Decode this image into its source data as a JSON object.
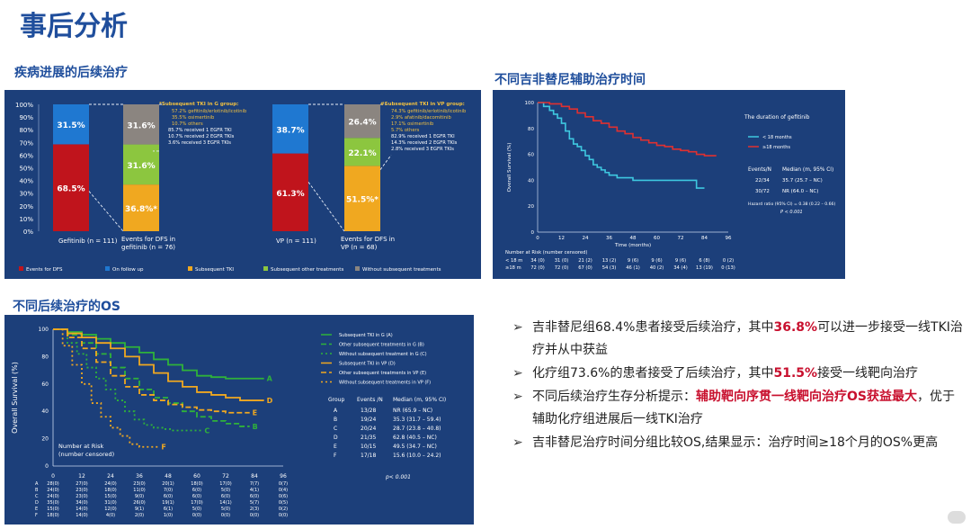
{
  "slide_title": "事后分析",
  "sections": {
    "progression_title": "疾病进展的后续治疗",
    "duration_title": "不同吉非替尼辅助治疗时间",
    "os_title": "不同后续治疗的OS"
  },
  "colors": {
    "panel": "#1c3f7a",
    "title": "#1f4e9c",
    "red": "#c8102e"
  },
  "bullets": [
    {
      "pre": "吉非替尼组68.4%患者接受后续治疗，其中",
      "highlight": "36.8%",
      "post": "可以进一步接受一线TKI治疗并从中获益"
    },
    {
      "pre": "化疗组73.6%的患者接受了后续治疗，其中",
      "highlight": "51.5%",
      "post": "接受一线靶向治疗"
    },
    {
      "pre": "不同后续治疗生存分析提示：",
      "highlight": "辅助靶向序贯一线靶向治疗OS获益最大",
      "post": "，优于辅助化疗组进展后一线TKI治疗"
    },
    {
      "pre": "吉非替尼治疗时间分组比较OS,结果显示：治疗时间≥18个月的OS%更高",
      "highlight": "",
      "post": ""
    }
  ],
  "chart_data": [
    {
      "type": "bar",
      "subtype": "stacked-percent",
      "y_ticks": [
        "100%",
        "90%",
        "80%",
        "70%",
        "60%",
        "50%",
        "40%",
        "30%",
        "20%",
        "10%",
        "0%"
      ],
      "ylim": [
        0,
        100
      ],
      "categories": [
        "Gefitinib (n = 111)",
        "Events for DFS in gefitinib (n = 76)",
        "VP (n = 111)",
        "Events for DFS in VP (n = 68)"
      ],
      "series": [
        {
          "name": "Events for DFS",
          "color": "#c0141c",
          "values": [
            68.5,
            0,
            61.3,
            0
          ]
        },
        {
          "name": "On follow up",
          "color": "#1f78d1",
          "values": [
            31.5,
            0,
            38.7,
            0
          ]
        },
        {
          "name": "Subsequent TKI",
          "color": "#f0a820",
          "values": [
            0,
            36.8,
            0,
            51.5
          ]
        },
        {
          "name": "Subsequent other treatments",
          "color": "#8cc63f",
          "values": [
            0,
            31.6,
            0,
            22.1
          ]
        },
        {
          "name": "Without subsequent treatments",
          "color": "#8b8580",
          "values": [
            0,
            31.6,
            0,
            26.4
          ]
        }
      ],
      "bar_labels": [
        [
          "68.5%",
          "31.5%"
        ],
        [
          "36.8%*",
          "31.6%",
          "31.6%"
        ],
        [
          "61.3%",
          "38.7%"
        ],
        [
          "51.5%*",
          "22.1%",
          "26.4%"
        ]
      ],
      "annotations": {
        "gefitinib": {
          "title": "*Subsequent TKI in G group:",
          "lines": [
            "57.2% gefitinib/erlotinib/icotinib",
            "35.5% osimertinib",
            "10.7% others",
            "85.7% received 1 EGFR TKI",
            "10.7% received 2 EGFR TKIs",
            "3.6% received 3 EGFR TKIs"
          ]
        },
        "vp": {
          "title": "#Subsequent TKI in VP group:",
          "lines": [
            "74.3% gefitinib/erlotinib/icotinib",
            "2.9% afatinib/dacomitinib",
            "17.1% osimertinib",
            "5.7% others",
            "82.9% received 1 EGFR TKI",
            "14.3% received 2 EGFR TKIs",
            "2.8% received 3 EGFR TKIs"
          ]
        }
      }
    },
    {
      "type": "line",
      "subtype": "kaplan-meier",
      "ylabel": "Overall Survival (%)",
      "xlabel": "Time (months)",
      "x_ticks": [
        "0",
        "12",
        "24",
        "36",
        "48",
        "60",
        "72",
        "84",
        "96"
      ],
      "y_ticks": [
        "100",
        "80",
        "60",
        "40",
        "20",
        "0"
      ],
      "xlim": [
        0,
        96
      ],
      "ylim": [
        0,
        100
      ],
      "legend_title": "The duration of gefitinib",
      "series": [
        {
          "name": "< 18 months",
          "color": "#3ec8e0",
          "x": [
            0,
            3,
            6,
            8,
            10,
            12,
            14,
            16,
            18,
            20,
            22,
            24,
            26,
            28,
            30,
            32,
            34,
            36,
            40,
            48,
            56,
            64,
            72,
            80,
            84
          ],
          "y": [
            100,
            97,
            94,
            91,
            88,
            84,
            78,
            72,
            68,
            66,
            63,
            59,
            56,
            52,
            50,
            48,
            46,
            44,
            42,
            40,
            40,
            40,
            40,
            34,
            34
          ]
        },
        {
          "name": "≥18 months",
          "color": "#e03030",
          "x": [
            0,
            6,
            12,
            16,
            20,
            24,
            28,
            32,
            36,
            40,
            44,
            48,
            52,
            56,
            60,
            64,
            68,
            72,
            76,
            80,
            84,
            90
          ],
          "y": [
            100,
            99,
            97,
            95,
            92,
            89,
            86,
            84,
            81,
            78,
            76,
            73,
            71,
            69,
            67,
            66,
            64,
            63,
            62,
            60,
            59,
            59
          ]
        }
      ],
      "stats_header": {
        "events": "Events/N",
        "median": "Median (m, 95% CI)"
      },
      "stats": [
        {
          "events": "22/34",
          "median": "35.7 (25.7 – NC)"
        },
        {
          "events": "30/72",
          "median": "NR (64.0 – NC)"
        }
      ],
      "hazard": "Hazard ratio (95% CI) = 0.38 (0.22 – 0.66)",
      "pvalue": "P < 0.001",
      "risk_header": "Number at Risk (number censored)",
      "risk_rows": [
        {
          "label": "< 18 m",
          "values": [
            "34 (0)",
            "31 (0)",
            "21 (2)",
            "13 (2)",
            "9 (6)",
            "9 (6)",
            "9 (6)",
            "6 (8)",
            "0 (2)"
          ]
        },
        {
          "label": "≥18 m",
          "values": [
            "72 (0)",
            "72 (0)",
            "67 (0)",
            "54 (3)",
            "46 (1)",
            "40 (2)",
            "34 (4)",
            "13 (19)",
            "0 (13)"
          ]
        }
      ]
    },
    {
      "type": "line",
      "subtype": "kaplan-meier",
      "ylabel": "Overall Survival (%)",
      "x_ticks": [
        "0",
        "12",
        "24",
        "36",
        "48",
        "60",
        "72",
        "84",
        "96"
      ],
      "y_ticks": [
        "100",
        "80",
        "60",
        "40",
        "20",
        "0"
      ],
      "xlim": [
        0,
        96
      ],
      "ylim": [
        0,
        100
      ],
      "series": [
        {
          "name": "Subsequent TKI in G (A)",
          "label": "A",
          "color": "#2fb23a",
          "x": [
            0,
            6,
            12,
            18,
            24,
            30,
            36,
            42,
            48,
            54,
            60,
            66,
            72,
            78,
            84,
            88
          ],
          "y": [
            100,
            98,
            96,
            93,
            90,
            87,
            83,
            78,
            74,
            70,
            66,
            65,
            64,
            64,
            64,
            64
          ]
        },
        {
          "name": "Other subsequent treatments in G (B)",
          "label": "B",
          "color": "#2fb23a",
          "x": [
            0,
            6,
            12,
            18,
            24,
            30,
            36,
            42,
            48,
            54,
            60,
            66,
            72,
            78,
            82
          ],
          "y": [
            100,
            96,
            90,
            82,
            72,
            64,
            56,
            50,
            46,
            40,
            36,
            33,
            31,
            29,
            29
          ]
        },
        {
          "name": "Without subsequent treatment in G (C)",
          "label": "C",
          "color": "#2fb23a",
          "x": [
            0,
            6,
            10,
            14,
            18,
            22,
            26,
            30,
            34,
            38,
            42,
            46,
            50,
            54,
            58,
            62
          ],
          "y": [
            100,
            90,
            82,
            72,
            64,
            56,
            48,
            40,
            34,
            30,
            28,
            27,
            26,
            26,
            26,
            26
          ]
        },
        {
          "name": "Subsequent TKI in VP (D)",
          "label": "D",
          "color": "#f0a820",
          "x": [
            0,
            6,
            12,
            18,
            24,
            30,
            36,
            42,
            48,
            54,
            60,
            66,
            72,
            78,
            84,
            88
          ],
          "y": [
            100,
            97,
            94,
            90,
            86,
            80,
            74,
            68,
            62,
            58,
            54,
            52,
            50,
            48,
            48,
            48
          ]
        },
        {
          "name": "Other subsequent treatments in VP (E)",
          "label": "E",
          "color": "#f0a820",
          "x": [
            0,
            6,
            12,
            18,
            24,
            30,
            36,
            42,
            48,
            54,
            60,
            66,
            72,
            78,
            82
          ],
          "y": [
            100,
            94,
            86,
            76,
            66,
            58,
            52,
            48,
            45,
            43,
            41,
            40,
            39,
            39,
            39
          ]
        },
        {
          "name": "Without subsequent treatments in VP (F)",
          "label": "F",
          "color": "#f0a820",
          "x": [
            0,
            4,
            8,
            12,
            16,
            20,
            24,
            28,
            32,
            36,
            40,
            44
          ],
          "y": [
            100,
            88,
            74,
            60,
            46,
            36,
            28,
            22,
            16,
            14,
            14,
            14
          ]
        }
      ],
      "stats_header": {
        "group": "Group",
        "events": "Events /N",
        "median": "Median (m, 95% CI)"
      },
      "stats": [
        {
          "group": "A",
          "events": "13/28",
          "median": "NR  (65.9 – NC)"
        },
        {
          "group": "B",
          "events": "19/24",
          "median": "35.3 (31.7 – 59.4)"
        },
        {
          "group": "C",
          "events": "20/24",
          "median": "28.7 (23.8 – 40.8)"
        },
        {
          "group": "D",
          "events": "21/35",
          "median": "62.8 (40.5 – NC)"
        },
        {
          "group": "E",
          "events": "10/15",
          "median": "49.5 (34.7 – NC)"
        },
        {
          "group": "F",
          "events": "17/18",
          "median": "15.6 (10.0 – 24.2)"
        }
      ],
      "pvalue": "p< 0.001",
      "risk_header": [
        "Number at Risk",
        "(number censored)"
      ],
      "risk_rows": [
        {
          "label": "A",
          "values": [
            "28(0)",
            "27(0)",
            "24(0)",
            "23(0)",
            "20(1)",
            "18(0)",
            "17(0)",
            "7(7)",
            "0(7)"
          ]
        },
        {
          "label": "B",
          "values": [
            "24(0)",
            "23(0)",
            "18(0)",
            "11(0)",
            "7(0)",
            "6(0)",
            "5(0)",
            "4(1)",
            "0(4)"
          ]
        },
        {
          "label": "C",
          "values": [
            "24(0)",
            "23(0)",
            "15(0)",
            "9(0)",
            "6(0)",
            "6(0)",
            "6(0)",
            "6(0)",
            "0(6)"
          ]
        },
        {
          "label": "D",
          "values": [
            "35(0)",
            "34(0)",
            "31(0)",
            "26(0)",
            "19(1)",
            "17(0)",
            "14(1)",
            "5(7)",
            "0(5)"
          ]
        },
        {
          "label": "E",
          "values": [
            "15(0)",
            "14(0)",
            "12(0)",
            "9(1)",
            "6(1)",
            "5(0)",
            "5(0)",
            "2(3)",
            "0(2)"
          ]
        },
        {
          "label": "F",
          "values": [
            "18(0)",
            "14(0)",
            "4(0)",
            "2(0)",
            "1(0)",
            "0(0)",
            "0(0)",
            "0(0)",
            "0(0)"
          ]
        }
      ]
    }
  ]
}
